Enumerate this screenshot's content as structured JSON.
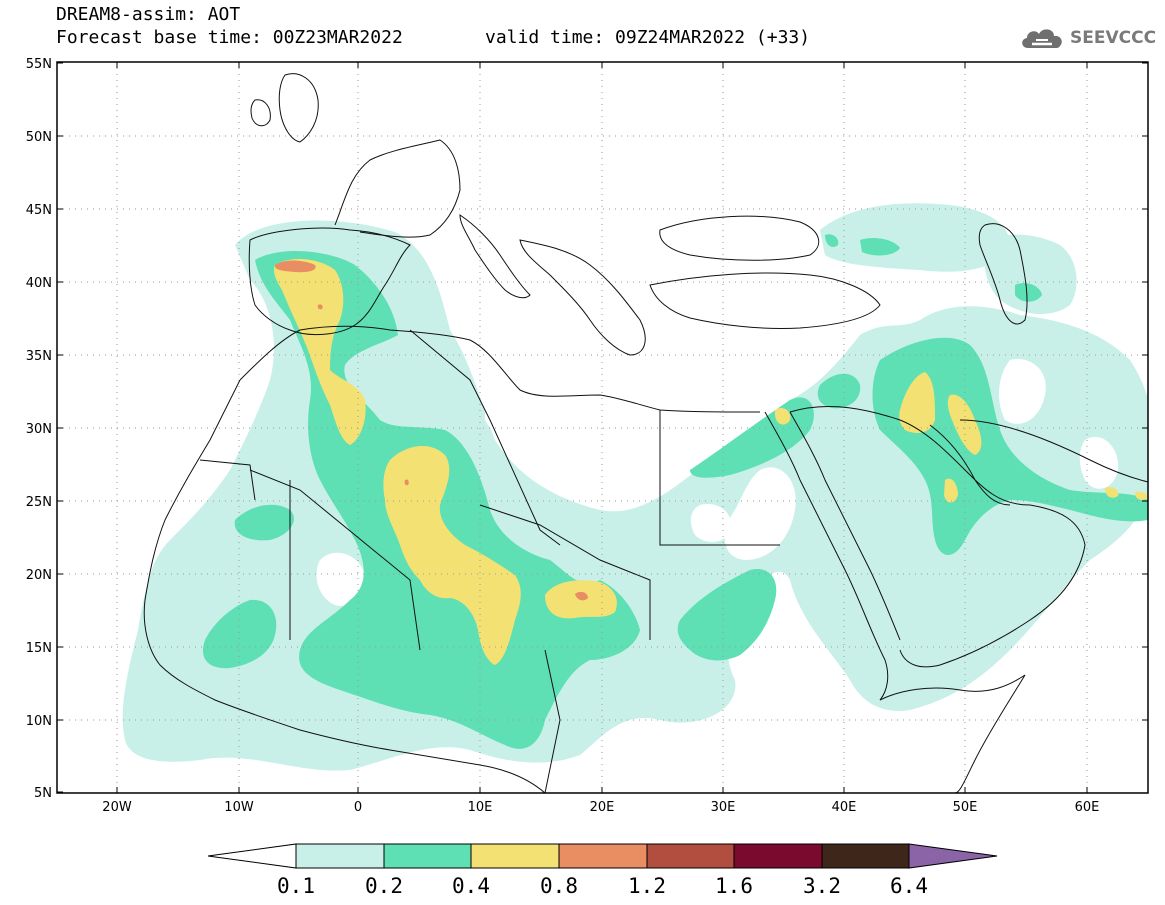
{
  "header": {
    "title": "DREAM8-assim: AOT",
    "base_time": "Forecast base time: 00Z23MAR2022",
    "valid_time": "valid time: 09Z24MAR2022 (+33)"
  },
  "logo": {
    "icon": "cloud-icon",
    "text": "SEEVCCC",
    "color": "#7a7a7a"
  },
  "map": {
    "lon_range": [
      -25,
      65
    ],
    "lat_range": [
      5,
      55
    ],
    "lat_ticks": [
      "5N",
      "10N",
      "15N",
      "20N",
      "25N",
      "30N",
      "35N",
      "40N",
      "45N",
      "50N",
      "55N"
    ],
    "lon_ticks": [
      "20W",
      "10W",
      "0",
      "10E",
      "20E",
      "30E",
      "40E",
      "50E",
      "60E"
    ],
    "grid": "dotted",
    "variable": "AOT"
  },
  "colorbar": {
    "labels": [
      "0.1",
      "0.2",
      "0.4",
      "0.8",
      "1.2",
      "1.6",
      "3.2",
      "6.4"
    ],
    "colors": {
      "below": "#ffffff",
      "c1": "#c8f0e8",
      "c2": "#5ee0b4",
      "c3": "#f3e273",
      "c4": "#e98d63",
      "c5": "#b14e40",
      "c6": "#7a0a2e",
      "c7": "#3e261a",
      "above": "#8b64a8"
    }
  }
}
